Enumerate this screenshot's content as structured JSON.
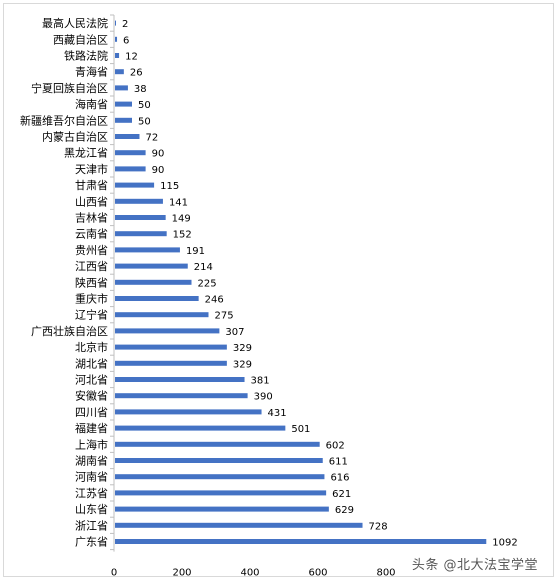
{
  "chart_data": {
    "type": "bar",
    "orientation": "horizontal",
    "categories": [
      "最高人民法院",
      "西藏自治区",
      "铁路法院",
      "青海省",
      "宁夏回族自治区",
      "海南省",
      "新疆维吾尔自治区",
      "内蒙古自治区",
      "黑龙江省",
      "天津市",
      "甘肃省",
      "山西省",
      "吉林省",
      "云南省",
      "贵州省",
      "江西省",
      "陕西省",
      "重庆市",
      "辽宁省",
      "广西壮族自治区",
      "北京市",
      "湖北省",
      "河北省",
      "安徽省",
      "四川省",
      "福建省",
      "上海市",
      "湖南省",
      "河南省",
      "江苏省",
      "山东省",
      "浙江省",
      "广东省"
    ],
    "values": [
      2,
      6,
      12,
      26,
      38,
      50,
      50,
      72,
      90,
      90,
      115,
      141,
      149,
      152,
      191,
      214,
      225,
      246,
      275,
      307,
      329,
      329,
      381,
      390,
      431,
      501,
      602,
      611,
      616,
      621,
      629,
      728,
      1092
    ],
    "xlim": [
      0,
      1200
    ],
    "xticks": [
      "0",
      "200",
      "400",
      "600",
      "800"
    ],
    "grid": false,
    "color": "#4472c4"
  },
  "watermark": "头条 @北大法宝学堂"
}
